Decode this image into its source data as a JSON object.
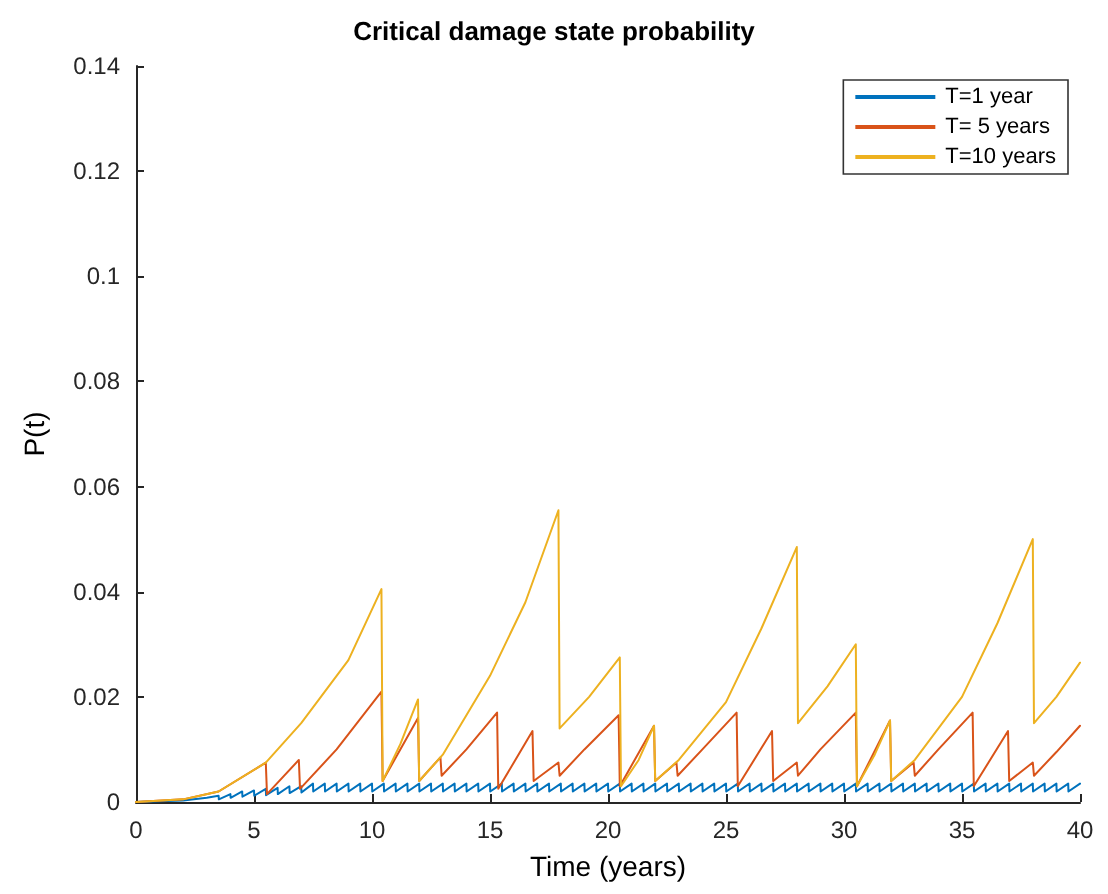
{
  "chart_data": {
    "type": "line",
    "title": "Critical damage state probability",
    "xlabel": "Time (years)",
    "ylabel": "P(t)",
    "xlim": [
      0,
      40
    ],
    "xticks": [
      0,
      5,
      10,
      15,
      20,
      25,
      30,
      35,
      40
    ],
    "ylim": [
      0,
      0.14
    ],
    "yticks": [
      0,
      0.02,
      0.04,
      0.06,
      0.08,
      0.1,
      0.12,
      0.14
    ],
    "legend": "top right",
    "grid": false,
    "marker": "none",
    "line_style": "solid",
    "series": [
      {
        "name": "T=1 year",
        "color": "#0072bd",
        "x": [
          0,
          2,
          3,
          3.5,
          3.51,
          4,
          4.01,
          4.5,
          4.51,
          5,
          5.01,
          5.5,
          5.51,
          6,
          6.01,
          6.5,
          6.51,
          7,
          7.01,
          7.5,
          7.51,
          8,
          8.01,
          8.5,
          8.51,
          9,
          9.01,
          9.5,
          9.51,
          10,
          10.01,
          10.5,
          10.51,
          11,
          11.01,
          11.5,
          11.51,
          12,
          12.01,
          12.5,
          12.51,
          13,
          13.01,
          13.5,
          13.51,
          14,
          14.01,
          14.5,
          14.51,
          15,
          15.01,
          15.5,
          15.51,
          16,
          16.01,
          16.5,
          16.51,
          17,
          17.01,
          17.5,
          17.51,
          18,
          18.01,
          18.5,
          18.51,
          19,
          19.01,
          19.5,
          19.51,
          20,
          20.01,
          20.5,
          20.51,
          21,
          21.01,
          21.5,
          21.51,
          22,
          22.01,
          22.5,
          22.51,
          23,
          23.01,
          23.5,
          23.51,
          24,
          24.01,
          24.5,
          24.51,
          25,
          25.01,
          25.5,
          25.51,
          26,
          26.01,
          26.5,
          26.51,
          27,
          27.01,
          27.5,
          27.51,
          28,
          28.01,
          28.5,
          28.51,
          29,
          29.01,
          29.5,
          29.51,
          30,
          30.01,
          30.5,
          30.51,
          31,
          31.01,
          31.5,
          31.51,
          32,
          32.01,
          32.5,
          32.51,
          33,
          33.01,
          33.5,
          33.51,
          34,
          34.01,
          34.5,
          34.51,
          35,
          35.01,
          35.5,
          35.51,
          36,
          36.01,
          36.5,
          36.51,
          37,
          37.01,
          37.5,
          37.51,
          38,
          38.01,
          38.5,
          38.51,
          39,
          39.01,
          39.5,
          39.51,
          40
        ],
        "values": [
          0,
          0.0003,
          0.0008,
          0.0012,
          0.0005,
          0.0015,
          0.0008,
          0.002,
          0.001,
          0.0022,
          0.0012,
          0.0025,
          0.0013,
          0.0027,
          0.0015,
          0.003,
          0.0017,
          0.003,
          0.0018,
          0.0035,
          0.002,
          0.0035,
          0.002,
          0.0035,
          0.002,
          0.0035,
          0.002,
          0.0035,
          0.002,
          0.0035,
          0.002,
          0.0035,
          0.002,
          0.0035,
          0.002,
          0.0035,
          0.002,
          0.0035,
          0.002,
          0.0035,
          0.002,
          0.0035,
          0.002,
          0.0035,
          0.002,
          0.0035,
          0.002,
          0.0035,
          0.002,
          0.0035,
          0.002,
          0.0035,
          0.002,
          0.0035,
          0.002,
          0.0035,
          0.002,
          0.0035,
          0.002,
          0.0035,
          0.002,
          0.0035,
          0.002,
          0.0035,
          0.002,
          0.0035,
          0.002,
          0.0035,
          0.002,
          0.0035,
          0.002,
          0.0035,
          0.002,
          0.0035,
          0.002,
          0.0035,
          0.002,
          0.0035,
          0.002,
          0.0035,
          0.002,
          0.0035,
          0.002,
          0.0035,
          0.002,
          0.0035,
          0.002,
          0.0035,
          0.002,
          0.0035,
          0.002,
          0.0035,
          0.002,
          0.0035,
          0.002,
          0.0035,
          0.002,
          0.0035,
          0.002,
          0.0035,
          0.002,
          0.0035,
          0.002,
          0.0035,
          0.002,
          0.0035,
          0.002,
          0.0035,
          0.002,
          0.0035,
          0.002,
          0.0035,
          0.002,
          0.0035,
          0.002,
          0.0035,
          0.002,
          0.0035,
          0.002,
          0.0035,
          0.002,
          0.0035,
          0.002,
          0.0035,
          0.002,
          0.0035,
          0.002,
          0.0035,
          0.002,
          0.0035,
          0.002,
          0.0035,
          0.002,
          0.0035,
          0.002,
          0.0035,
          0.002,
          0.0035,
          0.002,
          0.0035,
          0.002,
          0.0035,
          0.002,
          0.0035,
          0.002,
          0.0035,
          0.002,
          0.0035,
          0.002,
          0.0035
        ]
      },
      {
        "name": "T= 5 years",
        "color": "#d95319",
        "x": [
          0,
          2,
          3.5,
          5.5,
          5.55,
          6.9,
          6.95,
          8.5,
          10.4,
          10.45,
          11.95,
          12,
          12.9,
          12.95,
          14,
          15.3,
          15.35,
          16.8,
          16.85,
          17.9,
          17.95,
          19,
          20.45,
          20.5,
          21.95,
          22,
          22.9,
          22.95,
          24,
          25.45,
          25.5,
          26.95,
          27,
          28,
          28.05,
          29,
          30.5,
          30.55,
          31.95,
          32,
          32.95,
          33,
          34,
          35.45,
          35.5,
          36.95,
          37,
          38,
          38.05,
          39,
          40
        ],
        "values": [
          0,
          0.0005,
          0.002,
          0.0075,
          0.0015,
          0.008,
          0.0025,
          0.01,
          0.021,
          0.004,
          0.016,
          0.004,
          0.0085,
          0.005,
          0.01,
          0.017,
          0.0025,
          0.0135,
          0.004,
          0.0075,
          0.005,
          0.01,
          0.0165,
          0.003,
          0.0145,
          0.004,
          0.0075,
          0.005,
          0.01,
          0.017,
          0.003,
          0.0135,
          0.004,
          0.0075,
          0.005,
          0.01,
          0.017,
          0.003,
          0.0155,
          0.004,
          0.0075,
          0.005,
          0.01,
          0.017,
          0.003,
          0.0135,
          0.004,
          0.0075,
          0.005,
          0.0095,
          0.0145
        ]
      },
      {
        "name": "T=10 years",
        "color": "#edb120",
        "x": [
          0,
          2,
          3.5,
          5.5,
          7,
          9,
          10.4,
          10.45,
          11.2,
          11.95,
          12,
          13,
          15,
          16.5,
          17.9,
          17.95,
          19.2,
          20.5,
          20.55,
          21.3,
          21.95,
          22,
          23,
          25,
          26.5,
          28,
          28.05,
          29.3,
          30.5,
          30.55,
          31.3,
          31.95,
          32,
          33,
          35,
          36.5,
          38,
          38.05,
          39,
          40
        ],
        "values": [
          0,
          0.0005,
          0.002,
          0.0075,
          0.015,
          0.027,
          0.0405,
          0.004,
          0.011,
          0.0195,
          0.004,
          0.009,
          0.024,
          0.038,
          0.0555,
          0.014,
          0.02,
          0.0275,
          0.003,
          0.008,
          0.0145,
          0.004,
          0.008,
          0.019,
          0.033,
          0.0485,
          0.015,
          0.022,
          0.03,
          0.003,
          0.009,
          0.0155,
          0.004,
          0.008,
          0.02,
          0.034,
          0.05,
          0.015,
          0.02,
          0.0265
        ]
      }
    ]
  }
}
